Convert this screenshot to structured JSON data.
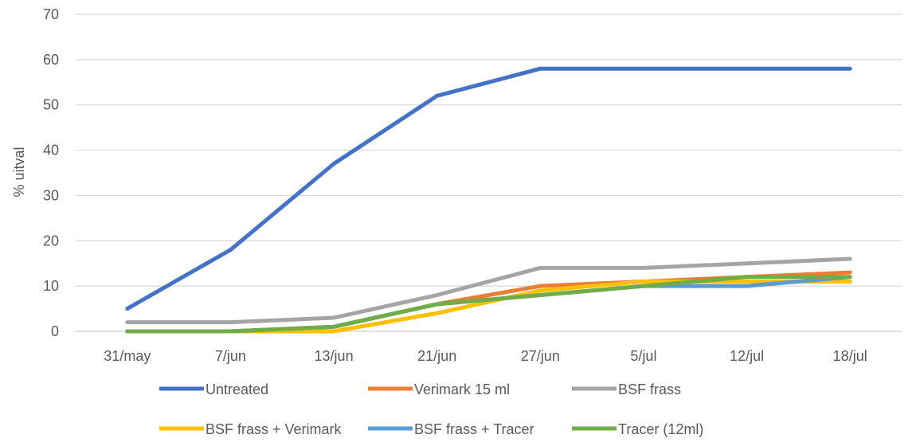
{
  "chart_data": {
    "type": "line",
    "title": "",
    "xlabel": "",
    "ylabel": "% uitval",
    "categories": [
      "31/may",
      "7/jun",
      "13/jun",
      "21/jun",
      "27/jun",
      "5/jul",
      "12/jul",
      "18/jul"
    ],
    "ylim": [
      0,
      70
    ],
    "yticks": [
      0,
      10,
      20,
      30,
      40,
      50,
      60,
      70
    ],
    "grid": "horizontal",
    "legend": "bottom",
    "series": [
      {
        "name": "Untreated",
        "color": "#4472C4",
        "values": [
          5,
          18,
          37,
          52,
          58,
          58,
          58,
          58
        ]
      },
      {
        "name": "Verimark 15 ml",
        "color": "#ED7D31",
        "values": [
          0,
          0,
          1,
          6,
          10,
          11,
          12,
          13
        ]
      },
      {
        "name": "BSF frass",
        "color": "#A5A5A5",
        "values": [
          2,
          2,
          3,
          8,
          14,
          14,
          15,
          16
        ]
      },
      {
        "name": "BSF frass + Verimark",
        "color": "#FFC000",
        "values": [
          0,
          0,
          0,
          4,
          9,
          11,
          11,
          11
        ]
      },
      {
        "name": "BSF frass + Tracer",
        "color": "#5B9BD5",
        "values": [
          0,
          0,
          1,
          6,
          8,
          10,
          10,
          12
        ]
      },
      {
        "name": "Tracer (12ml)",
        "color": "#70AD47",
        "values": [
          0,
          0,
          1,
          6,
          8,
          10,
          12,
          12
        ]
      }
    ]
  }
}
